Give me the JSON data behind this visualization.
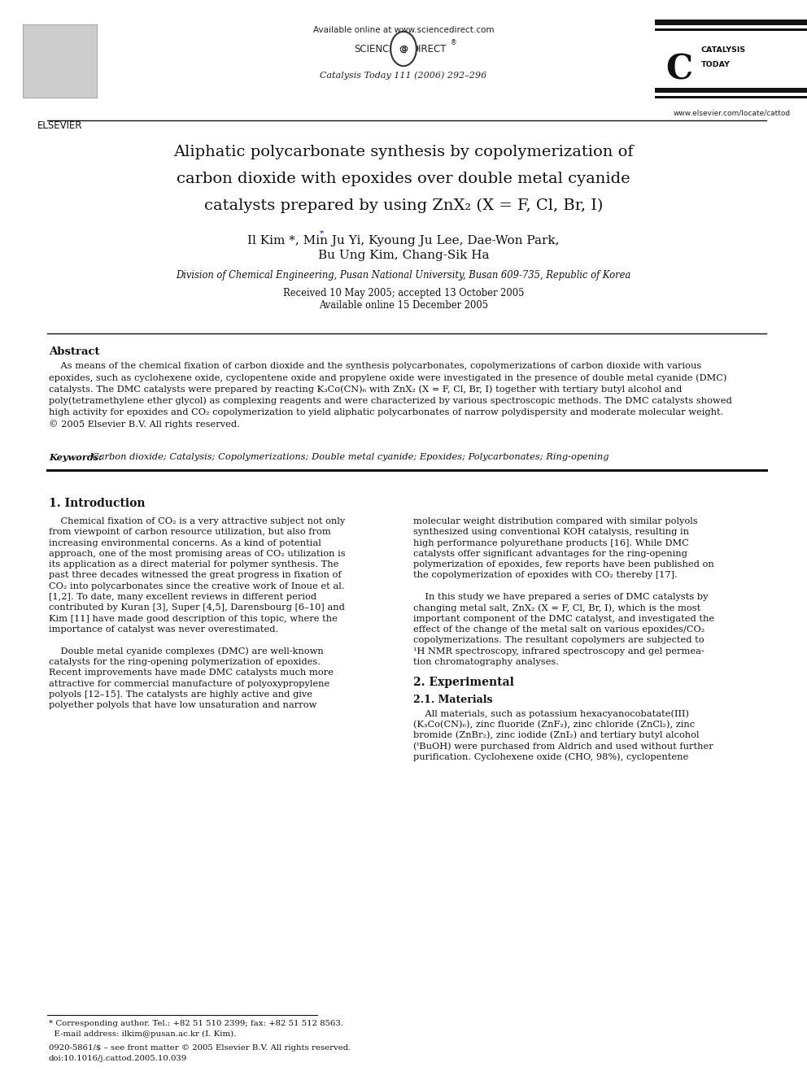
{
  "page_width": 9.92,
  "page_height": 13.23,
  "bg_color": "#ffffff",
  "header": {
    "available_online": "Available online at www.sciencedirect.com",
    "journal_line": "Catalysis Today 111 (2006) 292–296",
    "website": "www.elsevier.com/locate/cattod"
  },
  "title_lines": [
    "Aliphatic polycarbonate synthesis by copolymerization of",
    "carbon dioxide with epoxides over double metal cyanide",
    "catalysts prepared by using ZnX₂ (X = F, Cl, Br, I)"
  ],
  "affiliation": "Division of Chemical Engineering, Pusan National University, Busan 609-735, Republic of Korea",
  "abstract_title": "Abstract",
  "abs_lines": [
    "    As means of the chemical fixation of carbon dioxide and the synthesis polycarbonates, copolymerizations of carbon dioxide with various",
    "epoxides, such as cyclohexene oxide, cyclopentene oxide and propylene oxide were investigated in the presence of double metal cyanide (DMC)",
    "catalysts. The DMC catalysts were prepared by reacting K₃Co(CN)₆ with ZnX₂ (X = F, Cl, Br, I) together with tertiary butyl alcohol and",
    "poly(tetramethylene ether glycol) as complexing reagents and were characterized by various spectroscopic methods. The DMC catalysts showed",
    "high activity for epoxides and CO₂ copolymerization to yield aliphatic polycarbonates of narrow polydispersity and moderate molecular weight.",
    "© 2005 Elsevier B.V. All rights reserved."
  ],
  "keywords_text": "Carbon dioxide; Catalysis; Copolymerizations; Double metal cyanide; Epoxides; Polycarbonates; Ring-opening",
  "section1_title": "1. Introduction",
  "col1_lines": [
    "    Chemical fixation of CO₂ is a very attractive subject not only",
    "from viewpoint of carbon resource utilization, but also from",
    "increasing environmental concerns. As a kind of potential",
    "approach, one of the most promising areas of CO₂ utilization is",
    "its application as a direct material for polymer synthesis. The",
    "past three decades witnessed the great progress in fixation of",
    "CO₂ into polycarbonates since the creative work of Inoue et al.",
    "[1,2]. To date, many excellent reviews in different period",
    "contributed by Kuran [3], Super [4,5], Darensbourg [6–10] and",
    "Kim [11] have made good description of this topic, where the",
    "importance of catalyst was never overestimated.",
    "",
    "    Double metal cyanide complexes (DMC) are well-known",
    "catalysts for the ring-opening polymerization of epoxides.",
    "Recent improvements have made DMC catalysts much more",
    "attractive for commercial manufacture of polyoxypropylene",
    "polyols [12–15]. The catalysts are highly active and give",
    "polyether polyols that have low unsaturation and narrow"
  ],
  "col2_lines": [
    "molecular weight distribution compared with similar polyols",
    "synthesized using conventional KOH catalysis, resulting in",
    "high performance polyurethane products [16]. While DMC",
    "catalysts offer significant advantages for the ring-opening",
    "polymerization of epoxides, few reports have been published on",
    "the copolymerization of epoxides with CO₂ thereby [17].",
    "",
    "    In this study we have prepared a series of DMC catalysts by",
    "changing metal salt, ZnX₂ (X = F, Cl, Br, I), which is the most",
    "important component of the DMC catalyst, and investigated the",
    "effect of the change of the metal salt on various epoxides/CO₂",
    "copolymerizations. The resultant copolymers are subjected to",
    "¹H NMR spectroscopy, infrared spectroscopy and gel permea-",
    "tion chromatography analyses."
  ],
  "section2_title": "2. Experimental",
  "section2_1_title": "2.1. Materials",
  "sec2_lines": [
    "    All materials, such as potassium hexacyanocobatate(III)",
    "(K₃Co(CN)₆), zinc fluoride (ZnF₂), zinc chloride (ZnCl₂), zinc",
    "bromide (ZnBr₂), zinc iodide (ZnI₂) and tertiary butyl alcohol",
    "(ᵗBuOH) were purchased from Aldrich and used without further",
    "purification. Cyclohexene oxide (CHO, 98%), cyclopentene"
  ],
  "footer_lines_left": [
    "* Corresponding author. Tel.: +82 51 510 2399; fax: +82 51 512 8563.",
    "  E-mail address: ilkim@pusan.ac.kr (I. Kim)."
  ],
  "footer_lines_right": [
    "0920-5861/$ – see front matter © 2005 Elsevier B.V. All rights reserved.",
    "doi:10.1016/j.cattod.2005.10.039"
  ]
}
